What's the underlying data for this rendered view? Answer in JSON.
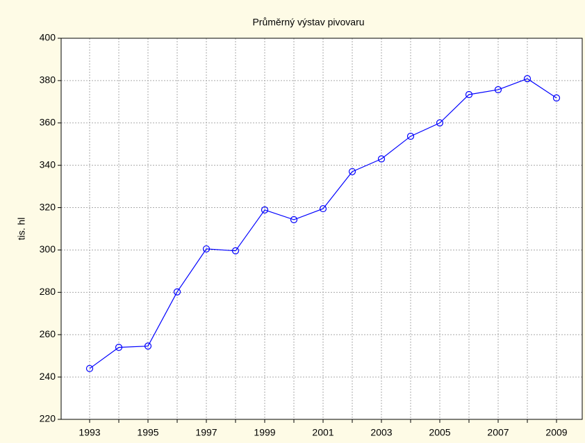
{
  "chart_data": {
    "type": "line",
    "title": "Průměrný výstav pivovaru",
    "y_label": "tis. hl",
    "categories": [
      "1993",
      null,
      "1995",
      null,
      "1997",
      null,
      "1999",
      null,
      "2001",
      null,
      "2003",
      null,
      "2005",
      null,
      "2007",
      null,
      "2009"
    ],
    "series": [
      {
        "name": "výstav",
        "color": "#0000ff",
        "values": [
          244,
          254,
          254.6,
          280.2,
          300.5,
          299.6,
          318.9,
          314.3,
          319.5,
          337,
          343,
          353.7,
          360,
          373.4,
          375.7,
          380.9,
          371.8
        ]
      }
    ],
    "ylim": [
      220,
      400
    ],
    "yticks": [
      220,
      240,
      260,
      280,
      300,
      320,
      340,
      360,
      380,
      400
    ],
    "grid": true
  }
}
